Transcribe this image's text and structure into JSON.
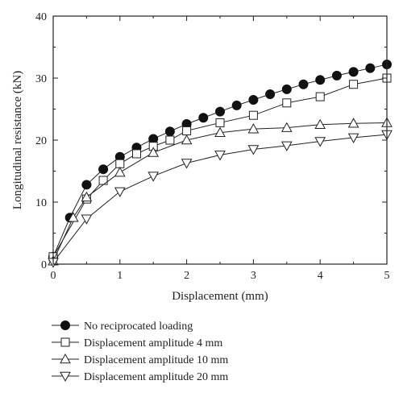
{
  "chart_data": {
    "type": "line",
    "title": "",
    "xlabel": "Displacement (mm)",
    "ylabel": "Longitudinal resistance (kN)",
    "xlim": [
      0,
      5
    ],
    "ylim": [
      0,
      40
    ],
    "x_ticks": [
      "0",
      "1",
      "2",
      "3",
      "4",
      "5"
    ],
    "y_ticks": [
      "0",
      "10",
      "20",
      "30",
      "40"
    ],
    "grid": false,
    "legend_placement": "bottom",
    "series": [
      {
        "name": "No reciprocated loading",
        "marker": "filled-circle",
        "x": [
          0,
          0.25,
          0.5,
          0.75,
          1.0,
          1.25,
          1.5,
          1.75,
          2.0,
          2.25,
          2.5,
          2.75,
          3.0,
          3.25,
          3.5,
          3.75,
          4.0,
          4.25,
          4.5,
          4.75,
          5.0
        ],
        "y": [
          1.2,
          7.5,
          12.8,
          15.3,
          17.3,
          18.8,
          20.2,
          21.4,
          22.6,
          23.6,
          24.6,
          25.6,
          26.5,
          27.4,
          28.2,
          29.0,
          29.7,
          30.4,
          31.0,
          31.6,
          32.2
        ]
      },
      {
        "name": "Displacement amplitude 4 mm",
        "marker": "open-square",
        "x": [
          0,
          0.5,
          0.75,
          1.0,
          1.25,
          1.5,
          1.75,
          2.0,
          2.5,
          3.0,
          3.5,
          4.0,
          4.5,
          5.0
        ],
        "y": [
          1.2,
          10.5,
          13.5,
          16.2,
          17.8,
          19.0,
          20.0,
          21.5,
          22.8,
          24.0,
          26.0,
          27.0,
          29.0,
          30.0
        ]
      },
      {
        "name": "Displacement amplitude 10 mm",
        "marker": "open-triangle-up",
        "x": [
          0,
          0.3,
          0.5,
          1.0,
          1.5,
          2.0,
          2.5,
          3.0,
          3.5,
          4.0,
          4.5,
          5.0
        ],
        "y": [
          0.5,
          7.5,
          10.8,
          14.8,
          18.0,
          20.0,
          21.2,
          21.8,
          22.0,
          22.5,
          22.7,
          22.8
        ]
      },
      {
        "name": "Displacement amplitude 20 mm",
        "marker": "open-triangle-down",
        "x": [
          0,
          0.5,
          1.0,
          1.5,
          2.0,
          2.5,
          3.0,
          3.5,
          4.0,
          4.5,
          5.0
        ],
        "y": [
          0.3,
          7.3,
          11.7,
          14.2,
          16.3,
          17.6,
          18.5,
          19.1,
          19.8,
          20.4,
          20.9
        ]
      }
    ]
  }
}
